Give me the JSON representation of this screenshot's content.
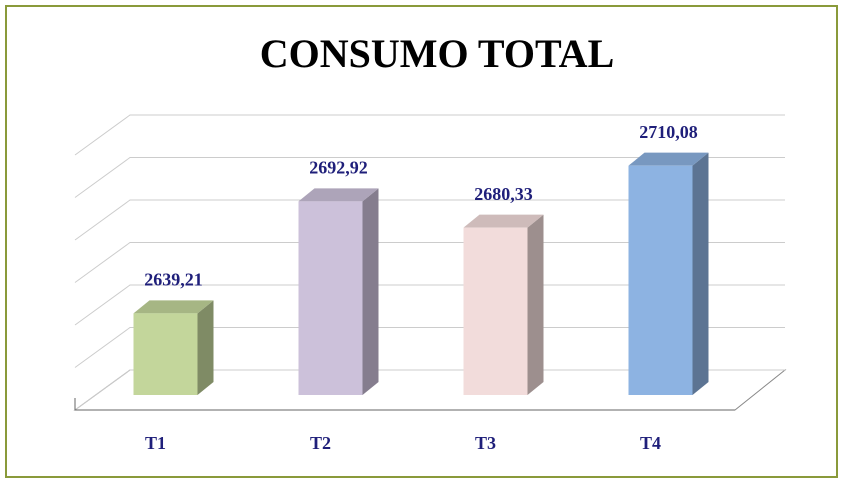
{
  "chart_data": {
    "type": "bar3d",
    "title": "CONSUMO TOTAL",
    "categories": [
      "T1",
      "T2",
      "T3",
      "T4"
    ],
    "values": [
      2639.21,
      2692.92,
      2680.33,
      2710.08
    ],
    "value_labels": [
      "2639,21",
      "2692,92",
      "2680,33",
      "2710,08"
    ],
    "colors": [
      "#c3d69b",
      "#ccc1da",
      "#f2dcdb",
      "#8db3e2"
    ],
    "ylim": [
      2600,
      2720
    ],
    "yticks": [
      2600,
      2620,
      2640,
      2660,
      2680,
      2700,
      2720
    ],
    "grid": true
  }
}
